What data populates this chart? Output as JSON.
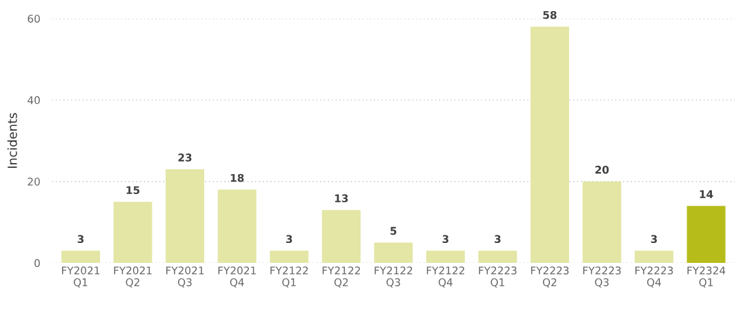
{
  "chart_data": {
    "type": "bar",
    "ylabel": "Incidents",
    "categories": [
      "FY2021\nQ1",
      "FY2021\nQ2",
      "FY2021\nQ3",
      "FY2021\nQ4",
      "FY2122\nQ1",
      "FY2122\nQ2",
      "FY2122\nQ3",
      "FY2122\nQ4",
      "FY2223\nQ1",
      "FY2223\nQ2",
      "FY2223\nQ3",
      "FY2223\nQ4",
      "FY2324\nQ1"
    ],
    "values": [
      3,
      15,
      23,
      18,
      3,
      13,
      5,
      3,
      3,
      58,
      20,
      3,
      14
    ],
    "colors": [
      "#e3e6a4",
      "#e3e6a4",
      "#e3e6a4",
      "#e3e6a4",
      "#e3e6a4",
      "#e3e6a4",
      "#e3e6a4",
      "#e3e6a4",
      "#e3e6a4",
      "#e3e6a4",
      "#e3e6a4",
      "#e3e6a4",
      "#b6bd1b"
    ],
    "ylim": [
      0,
      60
    ],
    "yticks": [
      0,
      20,
      40,
      60
    ],
    "grid": "y",
    "data_labels": true,
    "legend": false
  }
}
